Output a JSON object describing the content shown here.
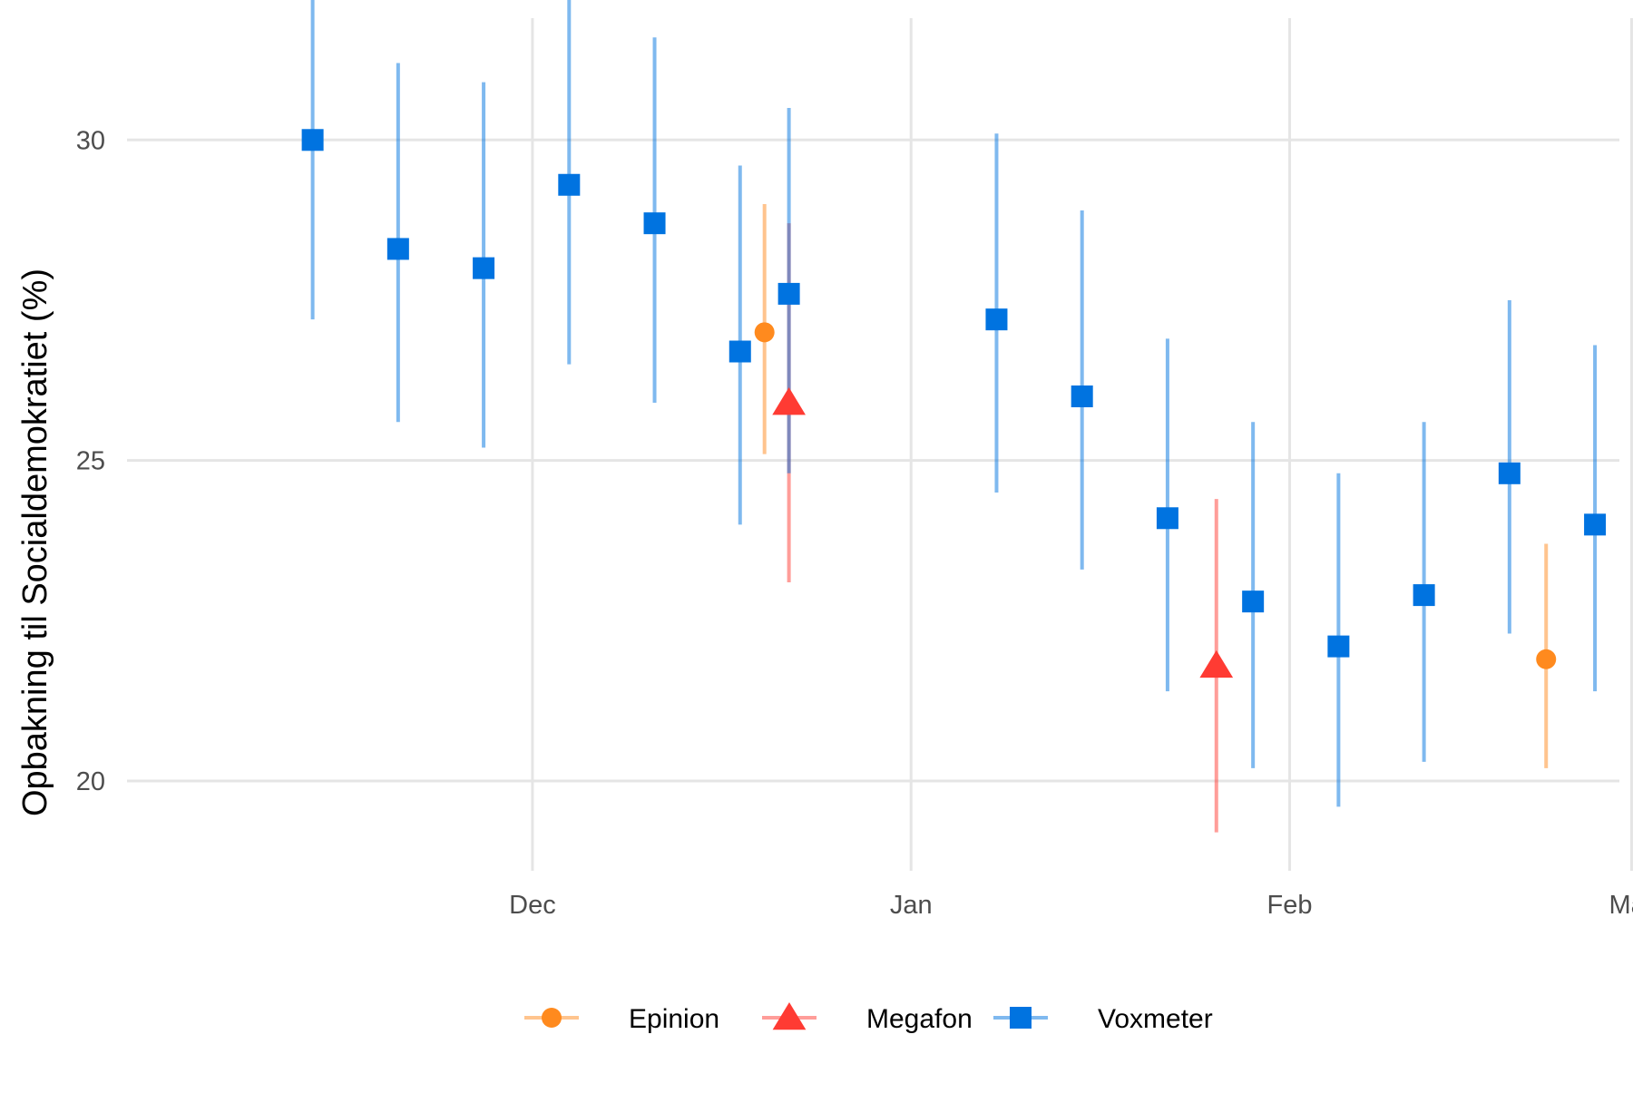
{
  "chart_data": {
    "type": "scatter",
    "title": "",
    "xlabel": "",
    "ylabel": "Opbakning til Socialdemokratiet (%)",
    "x_unit": "days since Nov 1",
    "xlim": [
      -3.2,
      119
    ],
    "ylim": [
      18.6,
      31.9
    ],
    "y_ticks": [
      20,
      25,
      30
    ],
    "x_ticks": [
      {
        "label": "Dec",
        "x": 30
      },
      {
        "label": "Jan",
        "x": 61
      },
      {
        "label": "Feb",
        "x": 92
      },
      {
        "label": "Mar",
        "x": 120
      }
    ],
    "grid": true,
    "legend_position": "bottom",
    "series": [
      {
        "name": "Epinion",
        "color": "#ff8a1e",
        "marker": "circle",
        "points": [
          {
            "x": 49,
            "y": 27.0,
            "lo": 25.1,
            "hi": 29.0
          },
          {
            "x": 113,
            "y": 21.9,
            "lo": 20.2,
            "hi": 23.7
          }
        ]
      },
      {
        "name": "Megafon",
        "color": "#ff3b33",
        "marker": "triangle",
        "points": [
          {
            "x": 51,
            "y": 25.9,
            "lo": 23.1,
            "hi": 28.7
          },
          {
            "x": 86,
            "y": 21.8,
            "lo": 19.2,
            "hi": 24.4
          }
        ]
      },
      {
        "name": "Voxmeter",
        "color": "#0073e0",
        "marker": "square",
        "points": [
          {
            "x": 12,
            "y": 30.0,
            "lo": 27.2,
            "hi": 32.9
          },
          {
            "x": 19,
            "y": 28.3,
            "lo": 25.6,
            "hi": 31.2
          },
          {
            "x": 26,
            "y": 28.0,
            "lo": 25.2,
            "hi": 30.9
          },
          {
            "x": 33,
            "y": 29.3,
            "lo": 26.5,
            "hi": 32.2
          },
          {
            "x": 40,
            "y": 28.7,
            "lo": 25.9,
            "hi": 31.6
          },
          {
            "x": 47,
            "y": 26.7,
            "lo": 24.0,
            "hi": 29.6
          },
          {
            "x": 51,
            "y": 27.6,
            "lo": 24.8,
            "hi": 30.5
          },
          {
            "x": 68,
            "y": 27.2,
            "lo": 24.5,
            "hi": 30.1
          },
          {
            "x": 75,
            "y": 26.0,
            "lo": 23.3,
            "hi": 28.9
          },
          {
            "x": 82,
            "y": 24.1,
            "lo": 21.4,
            "hi": 26.9
          },
          {
            "x": 89,
            "y": 22.8,
            "lo": 20.2,
            "hi": 25.6
          },
          {
            "x": 96,
            "y": 22.1,
            "lo": 19.6,
            "hi": 24.8
          },
          {
            "x": 103,
            "y": 22.9,
            "lo": 20.3,
            "hi": 25.6
          },
          {
            "x": 110,
            "y": 24.8,
            "lo": 22.3,
            "hi": 27.5
          },
          {
            "x": 117,
            "y": 24.0,
            "lo": 21.4,
            "hi": 26.8
          }
        ]
      }
    ]
  }
}
